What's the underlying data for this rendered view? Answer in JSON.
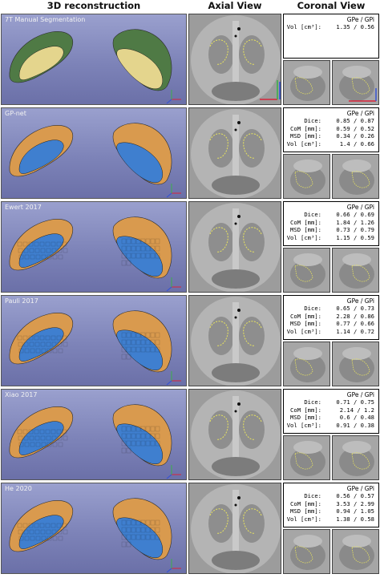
{
  "headers": {
    "recon": "3D reconstruction",
    "axial": "Axial View",
    "coronal": "Coronal View"
  },
  "colors": {
    "manual_outer": "#4f7a45",
    "manual_inner": "#e4d58d",
    "outer": "#d99a4e",
    "inner": "#3f7fcf"
  },
  "rows": [
    {
      "label": "7T Manual Segmentation",
      "head": "GPe / GPi",
      "metrics": [
        {
          "key": "Vol  [cm³]:",
          "value": "1.35 / 0.56"
        }
      ]
    },
    {
      "label": "GP-net",
      "head": "GPe / GPi",
      "metrics": [
        {
          "key": "Dice:",
          "value": "0.85 / 0.87"
        },
        {
          "key": "CoM [mm]:",
          "value": "0.59 / 0.52"
        },
        {
          "key": "MSD [mm]:",
          "value": "0.34 / 0.26"
        },
        {
          "key": "Vol  [cm³]:",
          "value": "1.4 / 0.66"
        }
      ]
    },
    {
      "label": "Ewert 2017",
      "head": "GPe / GPi",
      "metrics": [
        {
          "key": "Dice:",
          "value": "0.66 / 0.69"
        },
        {
          "key": "CoM [mm]:",
          "value": "1.84 / 1.26"
        },
        {
          "key": "MSD [mm]:",
          "value": "0.73 / 0.79"
        },
        {
          "key": "Vol  [cm³]:",
          "value": "1.15 / 0.59"
        }
      ]
    },
    {
      "label": "Pauli 2017",
      "head": "GPe / GPi",
      "metrics": [
        {
          "key": "Dice:",
          "value": "0.65 / 0.73"
        },
        {
          "key": "CoM [mm]:",
          "value": "2.28 / 0.86"
        },
        {
          "key": "MSD [mm]:",
          "value": "0.77 / 0.66"
        },
        {
          "key": "Vol  [cm³]:",
          "value": "1.14 / 0.72"
        }
      ]
    },
    {
      "label": "Xiao 2017",
      "head": "GPe / GPi",
      "metrics": [
        {
          "key": "Dice:",
          "value": "0.71 / 0.75"
        },
        {
          "key": "CoM [mm]:",
          "value": "2.14 / 1.2"
        },
        {
          "key": "MSD [mm]:",
          "value": "0.6 / 0.48"
        },
        {
          "key": "Vol  [cm³]:",
          "value": "0.91 / 0.38"
        }
      ]
    },
    {
      "label": "He 2020",
      "head": "GPe / GPi",
      "metrics": [
        {
          "key": "Dice:",
          "value": "0.56 / 0.57"
        },
        {
          "key": "CoM [mm]:",
          "value": "3.53 / 2.99"
        },
        {
          "key": "MSD [mm]:",
          "value": "0.94 / 1.05"
        },
        {
          "key": "Vol  [cm³]:",
          "value": "1.38 / 0.58"
        }
      ]
    }
  ]
}
